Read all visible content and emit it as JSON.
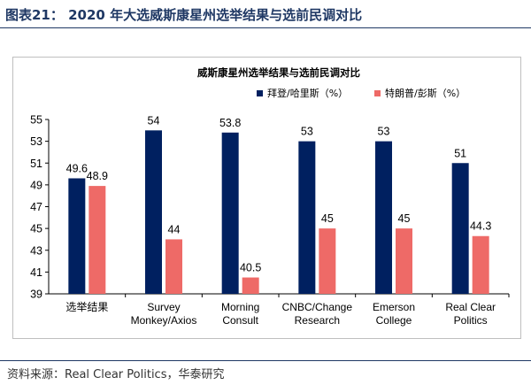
{
  "figure": {
    "title": "图表21： 2020 年大选威斯康星州选举结果与选前民调对比",
    "source": "资料来源：Real Clear Politics，华泰研究"
  },
  "colors": {
    "biden": "#002060",
    "trump": "#ee6a67",
    "rule": "#1f3864"
  },
  "chart_data": {
    "type": "bar",
    "title": "威斯康星州选举结果与选前民调对比",
    "categories": [
      [
        "选举结果"
      ],
      [
        "Survey",
        "Monkey/Axios"
      ],
      [
        "Morning",
        "Consult"
      ],
      [
        "CNBC/Change",
        "Research"
      ],
      [
        "Emerson",
        "College"
      ],
      [
        "Real Clear",
        "Politics"
      ]
    ],
    "series": [
      {
        "name": "拜登/哈里斯（%）",
        "values": [
          49.6,
          54,
          53.8,
          53,
          53,
          51
        ],
        "labels": [
          "49.6",
          "54",
          "53.8",
          "53",
          "53",
          "51"
        ]
      },
      {
        "name": "特朗普/彭斯（%）",
        "values": [
          48.9,
          44,
          40.5,
          45,
          45,
          44.3
        ],
        "labels": [
          "48.9",
          "44",
          "40.5",
          "45",
          "45",
          "44.3"
        ]
      }
    ],
    "ylim": [
      39,
      55
    ],
    "yticks": [
      39,
      41,
      43,
      45,
      47,
      49,
      51,
      53,
      55
    ],
    "legend_position": "top-right",
    "grid": false
  }
}
